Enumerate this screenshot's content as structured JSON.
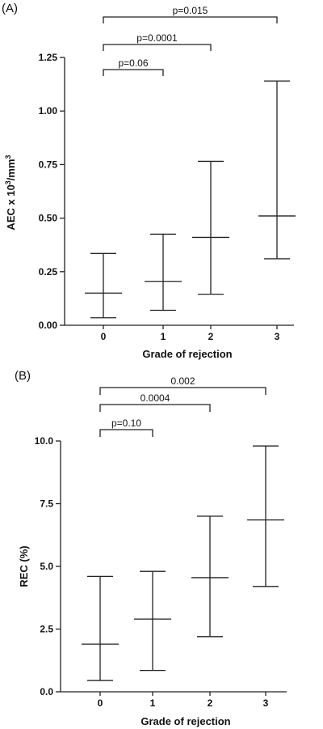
{
  "chart_data": [
    {
      "type": "error-bar",
      "panel_label": "(A)",
      "xlabel": "Grade of rejection",
      "ylabel_main": "AEC x 10",
      "ylabel_sup": "3",
      "ylabel_unit": "/mm",
      "ylabel_sup2": "3",
      "ylim": [
        0,
        1.25
      ],
      "yticks": [
        "0.00",
        "0.25",
        "0.50",
        "0.75",
        "1.00",
        "1.25"
      ],
      "categories": [
        "0",
        "1",
        "2",
        "3"
      ],
      "series": [
        {
          "median": [
            0.15,
            0.205,
            0.41,
            0.51
          ],
          "low": [
            0.035,
            0.07,
            0.145,
            0.31
          ],
          "high": [
            0.335,
            0.425,
            0.765,
            1.14
          ]
        }
      ],
      "comparisons": [
        {
          "from": "0",
          "to": "1",
          "label": "p=0.06"
        },
        {
          "from": "0",
          "to": "2",
          "label": "p=0.0001"
        },
        {
          "from": "0",
          "to": "3",
          "label": "p=0.015"
        }
      ]
    },
    {
      "type": "error-bar",
      "panel_label": "(B)",
      "xlabel": "Grade of rejection",
      "ylabel_main": "REC (%)",
      "ylim": [
        0,
        10
      ],
      "yticks": [
        "0.0",
        "2.5",
        "5.0",
        "7.5",
        "10.0"
      ],
      "categories": [
        "0",
        "1",
        "2",
        "3"
      ],
      "series": [
        {
          "median": [
            1.9,
            2.9,
            4.55,
            6.85
          ],
          "low": [
            0.45,
            0.85,
            2.2,
            4.2
          ],
          "high": [
            4.6,
            4.8,
            7.0,
            9.8
          ]
        }
      ],
      "comparisons": [
        {
          "from": "0",
          "to": "1",
          "label": "p=0.10"
        },
        {
          "from": "0",
          "to": "2",
          "label": "0.0004"
        },
        {
          "from": "0",
          "to": "3",
          "label": "0.002"
        }
      ]
    }
  ]
}
